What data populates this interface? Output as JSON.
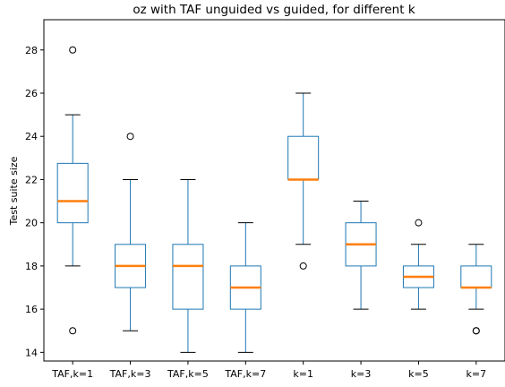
{
  "chart_data": {
    "type": "box",
    "title": "oz with TAF unguided vs guided, for different k",
    "xlabel": "",
    "ylabel": "Test suite size",
    "ylim": [
      13.6,
      29.4
    ],
    "yticks": [
      14,
      16,
      18,
      20,
      22,
      24,
      26,
      28
    ],
    "grid": false,
    "categories": [
      "TAF,k=1",
      "TAF,k=3",
      "TAF,k=5",
      "TAF,k=7",
      "k=1",
      "k=3",
      "k=5",
      "k=7"
    ],
    "boxes": [
      {
        "category": "TAF,k=1",
        "whisker_low": 18,
        "q1": 20,
        "median": 21,
        "q3": 22.75,
        "whisker_high": 25,
        "fliers": [
          15,
          28
        ]
      },
      {
        "category": "TAF,k=3",
        "whisker_low": 15,
        "q1": 17,
        "median": 18,
        "q3": 19,
        "whisker_high": 22,
        "fliers": [
          24
        ]
      },
      {
        "category": "TAF,k=5",
        "whisker_low": 14,
        "q1": 16,
        "median": 18,
        "q3": 19,
        "whisker_high": 22,
        "fliers": []
      },
      {
        "category": "TAF,k=7",
        "whisker_low": 14,
        "q1": 16,
        "median": 17,
        "q3": 18,
        "whisker_high": 20,
        "fliers": []
      },
      {
        "category": "k=1",
        "whisker_low": 19,
        "q1": 22,
        "median": 22,
        "q3": 24,
        "whisker_high": 26,
        "fliers": [
          18
        ]
      },
      {
        "category": "k=3",
        "whisker_low": 16,
        "q1": 18,
        "median": 19,
        "q3": 20,
        "whisker_high": 21,
        "fliers": []
      },
      {
        "category": "k=5",
        "whisker_low": 16,
        "q1": 17,
        "median": 17.5,
        "q3": 18,
        "whisker_high": 19,
        "fliers": [
          20
        ]
      },
      {
        "category": "k=7",
        "whisker_low": 16,
        "q1": 17,
        "median": 17,
        "q3": 18,
        "whisker_high": 19,
        "fliers": [
          15,
          15
        ]
      }
    ],
    "colors": {
      "box": "#1f77b4",
      "median": "#ff7f0e",
      "flier": "#000000"
    }
  }
}
